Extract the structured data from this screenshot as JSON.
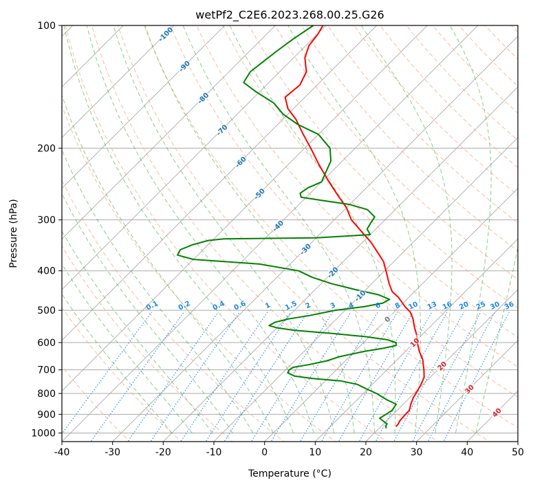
{
  "chart_data": {
    "type": "line",
    "subtype": "skew-t log-p diagram",
    "title": "wetPf2_C2E6.2023.268.00.25.G26",
    "xlabel": "Temperature (°C)",
    "ylabel": "Pressure (hPa)",
    "xlim": [
      -40,
      50
    ],
    "ylim": [
      1050,
      100
    ],
    "y_scale": "log",
    "x_ticks": [
      -40,
      -30,
      -20,
      -10,
      0,
      10,
      20,
      30,
      40,
      50
    ],
    "y_ticks": [
      100,
      200,
      300,
      400,
      500,
      600,
      700,
      800,
      900,
      1000
    ],
    "grid": true,
    "colors": {
      "temperature": "#ff0000",
      "dewpoint": "#008000",
      "isotherm": "#a9a9a9",
      "dry_adiabat": "#f4a582",
      "moist_adiabat": "#2ca02c",
      "mixing_ratio": "#1e88e5",
      "isotherm_label": "#1f77b4",
      "warm_label": "#d62728"
    },
    "isotherm_labels": [
      {
        "text": "-100",
        "t": -100
      },
      {
        "text": "-90",
        "t": -90
      },
      {
        "text": "-80",
        "t": -80
      },
      {
        "text": "-70",
        "t": -70
      },
      {
        "text": "-60",
        "t": -60
      },
      {
        "text": "-50",
        "t": -50
      },
      {
        "text": "-40",
        "t": -40
      },
      {
        "text": "-30",
        "t": -30
      },
      {
        "text": "-20",
        "t": -20
      },
      {
        "text": "-10",
        "t": -10
      },
      {
        "text": "0",
        "t": 0
      },
      {
        "text": "10",
        "t": 10
      },
      {
        "text": "20",
        "t": 20
      },
      {
        "text": "30",
        "t": 30
      },
      {
        "text": "40",
        "t": 40
      }
    ],
    "mixing_ratio_labels": [
      "0.1",
      "0.2",
      "0.4",
      "0.6",
      "1",
      "1.5",
      "2",
      "3",
      "4",
      "6",
      "8",
      "10",
      "13",
      "16",
      "20",
      "25",
      "30",
      "36"
    ],
    "series": [
      {
        "name": "Temperature",
        "color": "#ff0000",
        "points": [
          {
            "p": 965,
            "t": 23.0
          },
          {
            "p": 950,
            "t": 22.9
          },
          {
            "p": 935,
            "t": 22.6
          },
          {
            "p": 915,
            "t": 22.5
          },
          {
            "p": 880,
            "t": 22.4
          },
          {
            "p": 850,
            "t": 21.5
          },
          {
            "p": 820,
            "t": 20.7
          },
          {
            "p": 790,
            "t": 20.2
          },
          {
            "p": 760,
            "t": 19.6
          },
          {
            "p": 730,
            "t": 18.8
          },
          {
            "p": 700,
            "t": 17.3
          },
          {
            "p": 660,
            "t": 15.0
          },
          {
            "p": 630,
            "t": 12.7
          },
          {
            "p": 600,
            "t": 10.6
          },
          {
            "p": 575,
            "t": 9.0
          },
          {
            "p": 550,
            "t": 7.0
          },
          {
            "p": 525,
            "t": 5.1
          },
          {
            "p": 505,
            "t": 3.2
          },
          {
            "p": 490,
            "t": 1.1
          },
          {
            "p": 465,
            "t": -2.0
          },
          {
            "p": 450,
            "t": -4.4
          },
          {
            "p": 430,
            "t": -6.6
          },
          {
            "p": 405,
            "t": -9.2
          },
          {
            "p": 380,
            "t": -12.0
          },
          {
            "p": 360,
            "t": -15.1
          },
          {
            "p": 340,
            "t": -18.4
          },
          {
            "p": 320,
            "t": -22.4
          },
          {
            "p": 300,
            "t": -26.6
          },
          {
            "p": 280,
            "t": -30.0
          },
          {
            "p": 260,
            "t": -34.4
          },
          {
            "p": 240,
            "t": -39.0
          },
          {
            "p": 220,
            "t": -43.8
          },
          {
            "p": 200,
            "t": -48.8
          },
          {
            "p": 185,
            "t": -53.0
          },
          {
            "p": 170,
            "t": -57.4
          },
          {
            "p": 160,
            "t": -61.1
          },
          {
            "p": 150,
            "t": -63.9
          },
          {
            "p": 140,
            "t": -63.4
          },
          {
            "p": 130,
            "t": -64.7
          },
          {
            "p": 120,
            "t": -67.8
          },
          {
            "p": 112,
            "t": -69.4
          },
          {
            "p": 105,
            "t": -69.9
          },
          {
            "p": 100,
            "t": -70.6
          }
        ]
      },
      {
        "name": "Dewpoint",
        "color": "#008000",
        "points": [
          {
            "p": 975,
            "t": 21.4
          },
          {
            "p": 960,
            "t": 20.8
          },
          {
            "p": 950,
            "t": 20.7
          },
          {
            "p": 940,
            "t": 19.8
          },
          {
            "p": 920,
            "t": 18.1
          },
          {
            "p": 900,
            "t": 18.6
          },
          {
            "p": 880,
            "t": 19.0
          },
          {
            "p": 850,
            "t": 18.6
          },
          {
            "p": 830,
            "t": 16.0
          },
          {
            "p": 800,
            "t": 12.6
          },
          {
            "p": 780,
            "t": 9.8
          },
          {
            "p": 760,
            "t": 7.0
          },
          {
            "p": 745,
            "t": 3.0
          },
          {
            "p": 735,
            "t": -3.0
          },
          {
            "p": 725,
            "t": -7.0
          },
          {
            "p": 712,
            "t": -9.0
          },
          {
            "p": 700,
            "t": -9.3
          },
          {
            "p": 690,
            "t": -9.0
          },
          {
            "p": 680,
            "t": -6.5
          },
          {
            "p": 665,
            "t": -3.6
          },
          {
            "p": 650,
            "t": -2.0
          },
          {
            "p": 630,
            "t": 2.0
          },
          {
            "p": 620,
            "t": 5.0
          },
          {
            "p": 610,
            "t": 7.0
          },
          {
            "p": 600,
            "t": 6.4
          },
          {
            "p": 590,
            "t": 4.0
          },
          {
            "p": 580,
            "t": -1.0
          },
          {
            "p": 570,
            "t": -8.0
          },
          {
            "p": 560,
            "t": -16.0
          },
          {
            "p": 552,
            "t": -20.0
          },
          {
            "p": 545,
            "t": -22.0
          },
          {
            "p": 535,
            "t": -21.5
          },
          {
            "p": 525,
            "t": -19.5
          },
          {
            "p": 515,
            "t": -16.0
          },
          {
            "p": 500,
            "t": -12.0
          },
          {
            "p": 490,
            "t": -7.0
          },
          {
            "p": 480,
            "t": -4.0
          },
          {
            "p": 470,
            "t": -3.4
          },
          {
            "p": 458,
            "t": -6.5
          },
          {
            "p": 445,
            "t": -12.0
          },
          {
            "p": 430,
            "t": -18.0
          },
          {
            "p": 415,
            "t": -23.0
          },
          {
            "p": 400,
            "t": -27.0
          },
          {
            "p": 385,
            "t": -36.0
          },
          {
            "p": 375,
            "t": -50.0
          },
          {
            "p": 366,
            "t": -54.0
          },
          {
            "p": 355,
            "t": -54.5
          },
          {
            "p": 345,
            "t": -53.0
          },
          {
            "p": 337,
            "t": -50.8
          },
          {
            "p": 334,
            "t": -48.0
          },
          {
            "p": 332,
            "t": -30.0
          },
          {
            "p": 326,
            "t": -20.0
          },
          {
            "p": 316,
            "t": -21.7
          },
          {
            "p": 305,
            "t": -22.2
          },
          {
            "p": 295,
            "t": -22.6
          },
          {
            "p": 283,
            "t": -25.5
          },
          {
            "p": 275,
            "t": -30.0
          },
          {
            "p": 269,
            "t": -36.0
          },
          {
            "p": 264,
            "t": -41.0
          },
          {
            "p": 258,
            "t": -42.0
          },
          {
            "p": 250,
            "t": -41.5
          },
          {
            "p": 242,
            "t": -40.0
          },
          {
            "p": 230,
            "t": -41.0
          },
          {
            "p": 215,
            "t": -42.3
          },
          {
            "p": 200,
            "t": -45.0
          },
          {
            "p": 185,
            "t": -50.0
          },
          {
            "p": 175,
            "t": -56.0
          },
          {
            "p": 165,
            "t": -61.0
          },
          {
            "p": 155,
            "t": -65.0
          },
          {
            "p": 145,
            "t": -71.0
          },
          {
            "p": 138,
            "t": -75.0
          },
          {
            "p": 130,
            "t": -75.8
          },
          {
            "p": 122,
            "t": -75.2
          },
          {
            "p": 115,
            "t": -74.6
          },
          {
            "p": 108,
            "t": -73.8
          },
          {
            "p": 100,
            "t": -72.5
          }
        ]
      }
    ]
  }
}
